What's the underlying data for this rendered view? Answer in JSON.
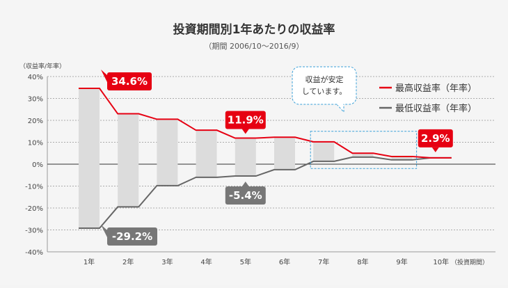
{
  "chart_data": {
    "type": "line",
    "title": "投資期間別1年あたりの収益率",
    "subtitle": "（期間 2006/10〜2016/9）",
    "ylabel": "（収益率/年率）",
    "xlabel": "（投資期間）",
    "ylim": [
      -40,
      40
    ],
    "yticks": [
      40,
      30,
      20,
      10,
      0,
      -10,
      -20,
      -30,
      -40
    ],
    "ytick_labels": [
      "40%",
      "30%",
      "20%",
      "10%",
      "0%",
      "-10%",
      "-20%",
      "-30%",
      "-40%"
    ],
    "categories": [
      "1年",
      "2年",
      "3年",
      "4年",
      "5年",
      "6年",
      "7年",
      "8年",
      "9年",
      "10年"
    ],
    "series": [
      {
        "name": "最高収益率（年率）",
        "color": "#e60012",
        "values": [
          34.6,
          23.0,
          20.5,
          15.5,
          11.9,
          12.3,
          10.2,
          5.0,
          3.5,
          2.9
        ]
      },
      {
        "name": "最低収益率（年率）",
        "color": "#666666",
        "values": [
          -29.2,
          -19.5,
          -9.8,
          -6.0,
          -5.4,
          -2.5,
          1.3,
          3.2,
          2.0,
          2.9
        ]
      }
    ],
    "callouts": [
      {
        "text": "34.6%",
        "series": 0,
        "index": 0,
        "color": "#e60012"
      },
      {
        "text": "11.9%",
        "series": 0,
        "index": 4,
        "color": "#e60012"
      },
      {
        "text": "2.9%",
        "series": 0,
        "index": 9,
        "color": "#e60012"
      },
      {
        "text": "-5.4%",
        "series": 1,
        "index": 4,
        "color": "#777777"
      },
      {
        "text": "-29.2%",
        "series": 1,
        "index": 0,
        "color": "#777777"
      }
    ],
    "annotation": {
      "lines": [
        "収益が安定",
        "しています。"
      ]
    },
    "legend_position": "top-right"
  }
}
